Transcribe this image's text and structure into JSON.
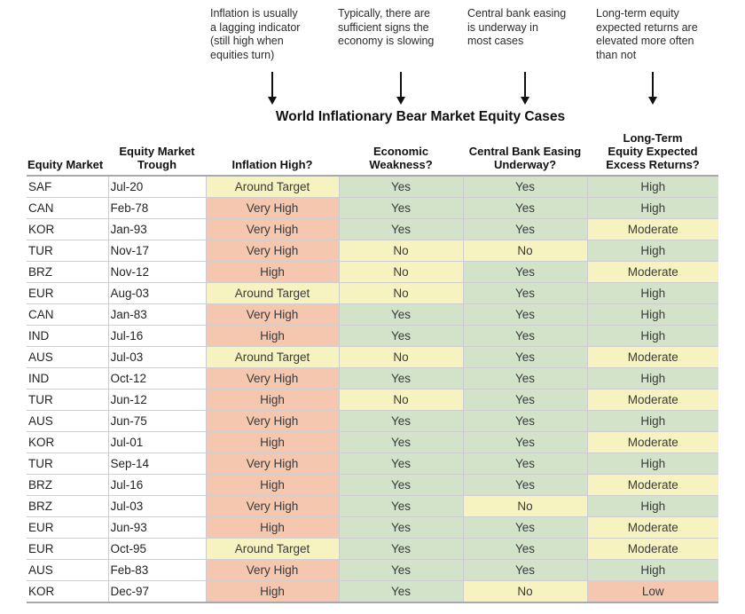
{
  "annotations": [
    {
      "text": "Inflation is usually\na lagging indicator\n(still high when\nequities turn)"
    },
    {
      "text": "Typically, there are\nsufficient signs the\neconomy is slowing"
    },
    {
      "text": "Central bank easing\nis underway in\nmost cases"
    },
    {
      "text": "Long-term equity\nexpected returns are\nelevated more often\nthan not"
    }
  ],
  "colors": {
    "green": "#d2e3ca",
    "yellow": "#f7f3c1",
    "red": "#f4c7ae"
  },
  "value_colors": {
    "inflation": {
      "Around Target": "yellow",
      "High": "red",
      "Very High": "red"
    },
    "weakness": {
      "Yes": "green",
      "No": "yellow"
    },
    "easing": {
      "Yes": "green",
      "No": "yellow"
    },
    "returns": {
      "High": "green",
      "Moderate": "yellow",
      "Low": "red"
    }
  },
  "chart_data": {
    "type": "table",
    "title": "World Inflationary Bear Market Equity Cases",
    "columns": [
      "Equity Market",
      "Equity Market\nTrough",
      "Inflation High?",
      "Economic\nWeakness?",
      "Central Bank Easing\nUnderway?",
      "Long-Term\nEquity Expected\nExcess Returns?"
    ],
    "rows": [
      [
        "SAF",
        "Jul-20",
        "Around Target",
        "Yes",
        "Yes",
        "High"
      ],
      [
        "CAN",
        "Feb-78",
        "Very High",
        "Yes",
        "Yes",
        "High"
      ],
      [
        "KOR",
        "Jan-93",
        "Very High",
        "Yes",
        "Yes",
        "Moderate"
      ],
      [
        "TUR",
        "Nov-17",
        "Very High",
        "No",
        "No",
        "High"
      ],
      [
        "BRZ",
        "Nov-12",
        "High",
        "No",
        "Yes",
        "Moderate"
      ],
      [
        "EUR",
        "Aug-03",
        "Around Target",
        "No",
        "Yes",
        "High"
      ],
      [
        "CAN",
        "Jan-83",
        "Very High",
        "Yes",
        "Yes",
        "High"
      ],
      [
        "IND",
        "Jul-16",
        "High",
        "Yes",
        "Yes",
        "High"
      ],
      [
        "AUS",
        "Jul-03",
        "Around Target",
        "No",
        "Yes",
        "Moderate"
      ],
      [
        "IND",
        "Oct-12",
        "Very High",
        "Yes",
        "Yes",
        "High"
      ],
      [
        "TUR",
        "Jun-12",
        "High",
        "No",
        "Yes",
        "Moderate"
      ],
      [
        "AUS",
        "Jun-75",
        "Very High",
        "Yes",
        "Yes",
        "High"
      ],
      [
        "KOR",
        "Jul-01",
        "High",
        "Yes",
        "Yes",
        "Moderate"
      ],
      [
        "TUR",
        "Sep-14",
        "Very High",
        "Yes",
        "Yes",
        "High"
      ],
      [
        "BRZ",
        "Jul-16",
        "High",
        "Yes",
        "Yes",
        "Moderate"
      ],
      [
        "BRZ",
        "Jul-03",
        "Very High",
        "Yes",
        "No",
        "High"
      ],
      [
        "EUR",
        "Jun-93",
        "High",
        "Yes",
        "Yes",
        "Moderate"
      ],
      [
        "EUR",
        "Oct-95",
        "Around Target",
        "Yes",
        "Yes",
        "Moderate"
      ],
      [
        "AUS",
        "Feb-83",
        "Very High",
        "Yes",
        "Yes",
        "High"
      ],
      [
        "KOR",
        "Dec-97",
        "High",
        "Yes",
        "No",
        "Low"
      ]
    ]
  }
}
